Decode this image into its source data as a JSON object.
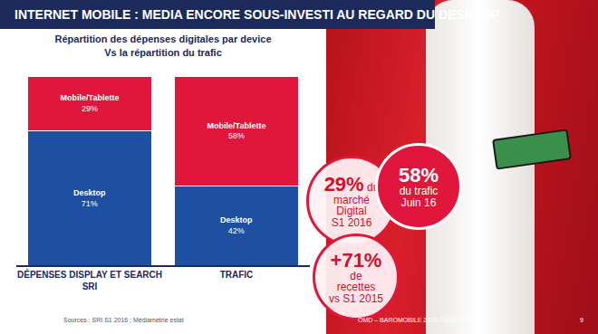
{
  "header": "INTERNET MOBILE : MEDIA ENCORE SOUS-INVESTI AU REGARD DU DESKTOP",
  "chart_data": {
    "type": "bar",
    "stacked": true,
    "title": "Répartition des dépenses digitales par device\nVs la répartition du trafic",
    "categories": [
      "DÉPENSES DISPLAY ET SEARCH\nSRI",
      "TRAFIC"
    ],
    "series": [
      {
        "name": "Desktop",
        "color": "#1f4fa0",
        "values": [
          71,
          42
        ],
        "value_labels": [
          "71%",
          "42%"
        ]
      },
      {
        "name": "Mobile/Tablette",
        "color": "#e0163c",
        "values": [
          29,
          58
        ],
        "value_labels": [
          "29%",
          "58%"
        ]
      }
    ],
    "ylim": [
      0,
      100
    ],
    "data_labels": true,
    "tick_labels": "x",
    "grid": false
  },
  "callouts": [
    {
      "headline": "29%",
      "suffix": "du",
      "lines": [
        "marché",
        "Digital",
        "S1 2016"
      ]
    },
    {
      "headline": "58%",
      "lines": [
        "du trafic",
        "Juin 16"
      ]
    },
    {
      "headline": "+71%",
      "lines": [
        "de",
        "recettes",
        "vs S1 2015"
      ]
    }
  ],
  "source": "Sources : SRI S1 2016 ; Médiamétrie estat",
  "footer": "OMD – BAROMOBILE 2016",
  "date": "24/11/2016",
  "page": "9"
}
